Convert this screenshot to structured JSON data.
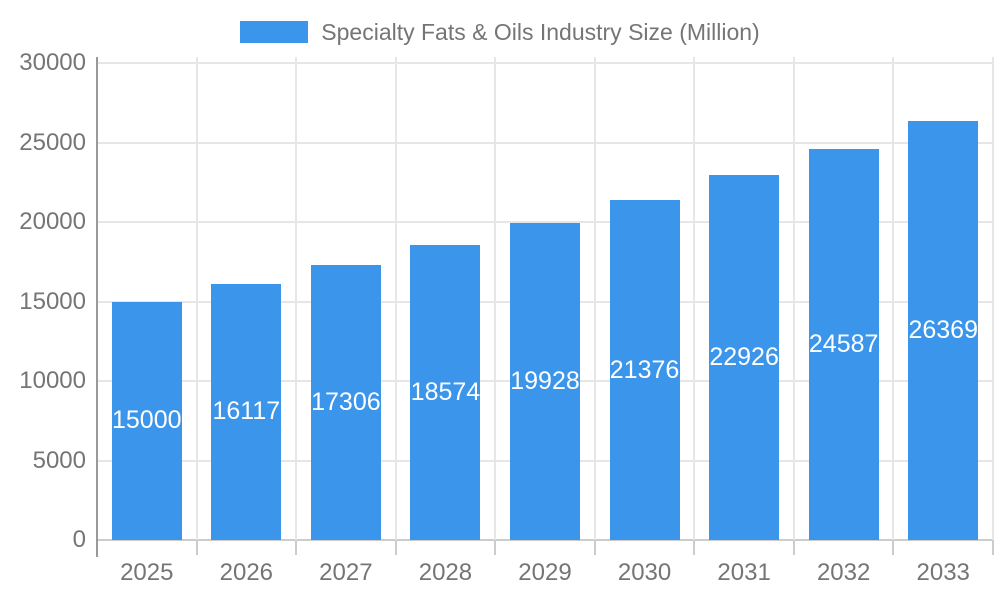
{
  "chart_data": {
    "type": "bar",
    "title": "Specialty Fats & Oils Industry Size (Million)",
    "categories": [
      "2025",
      "2026",
      "2027",
      "2028",
      "2029",
      "2030",
      "2031",
      "2032",
      "2033"
    ],
    "values": [
      15000,
      16117,
      17306,
      18574,
      19928,
      21376,
      22926,
      24587,
      26369
    ],
    "xlabel": "",
    "ylabel": "",
    "ylim": [
      0,
      30000
    ],
    "yticks": [
      0,
      5000,
      10000,
      15000,
      20000,
      25000,
      30000
    ],
    "grid": true,
    "legend_position": "top-center",
    "value_labels_position": "center-of-bar"
  },
  "colors": {
    "bar": "#3B95EA",
    "tick_label": "#757575",
    "value_label": "#ffffff",
    "gridline": "#e6e6e6",
    "y_axis": "#999999",
    "x_axis": "#cccccc",
    "background": "#ffffff"
  }
}
